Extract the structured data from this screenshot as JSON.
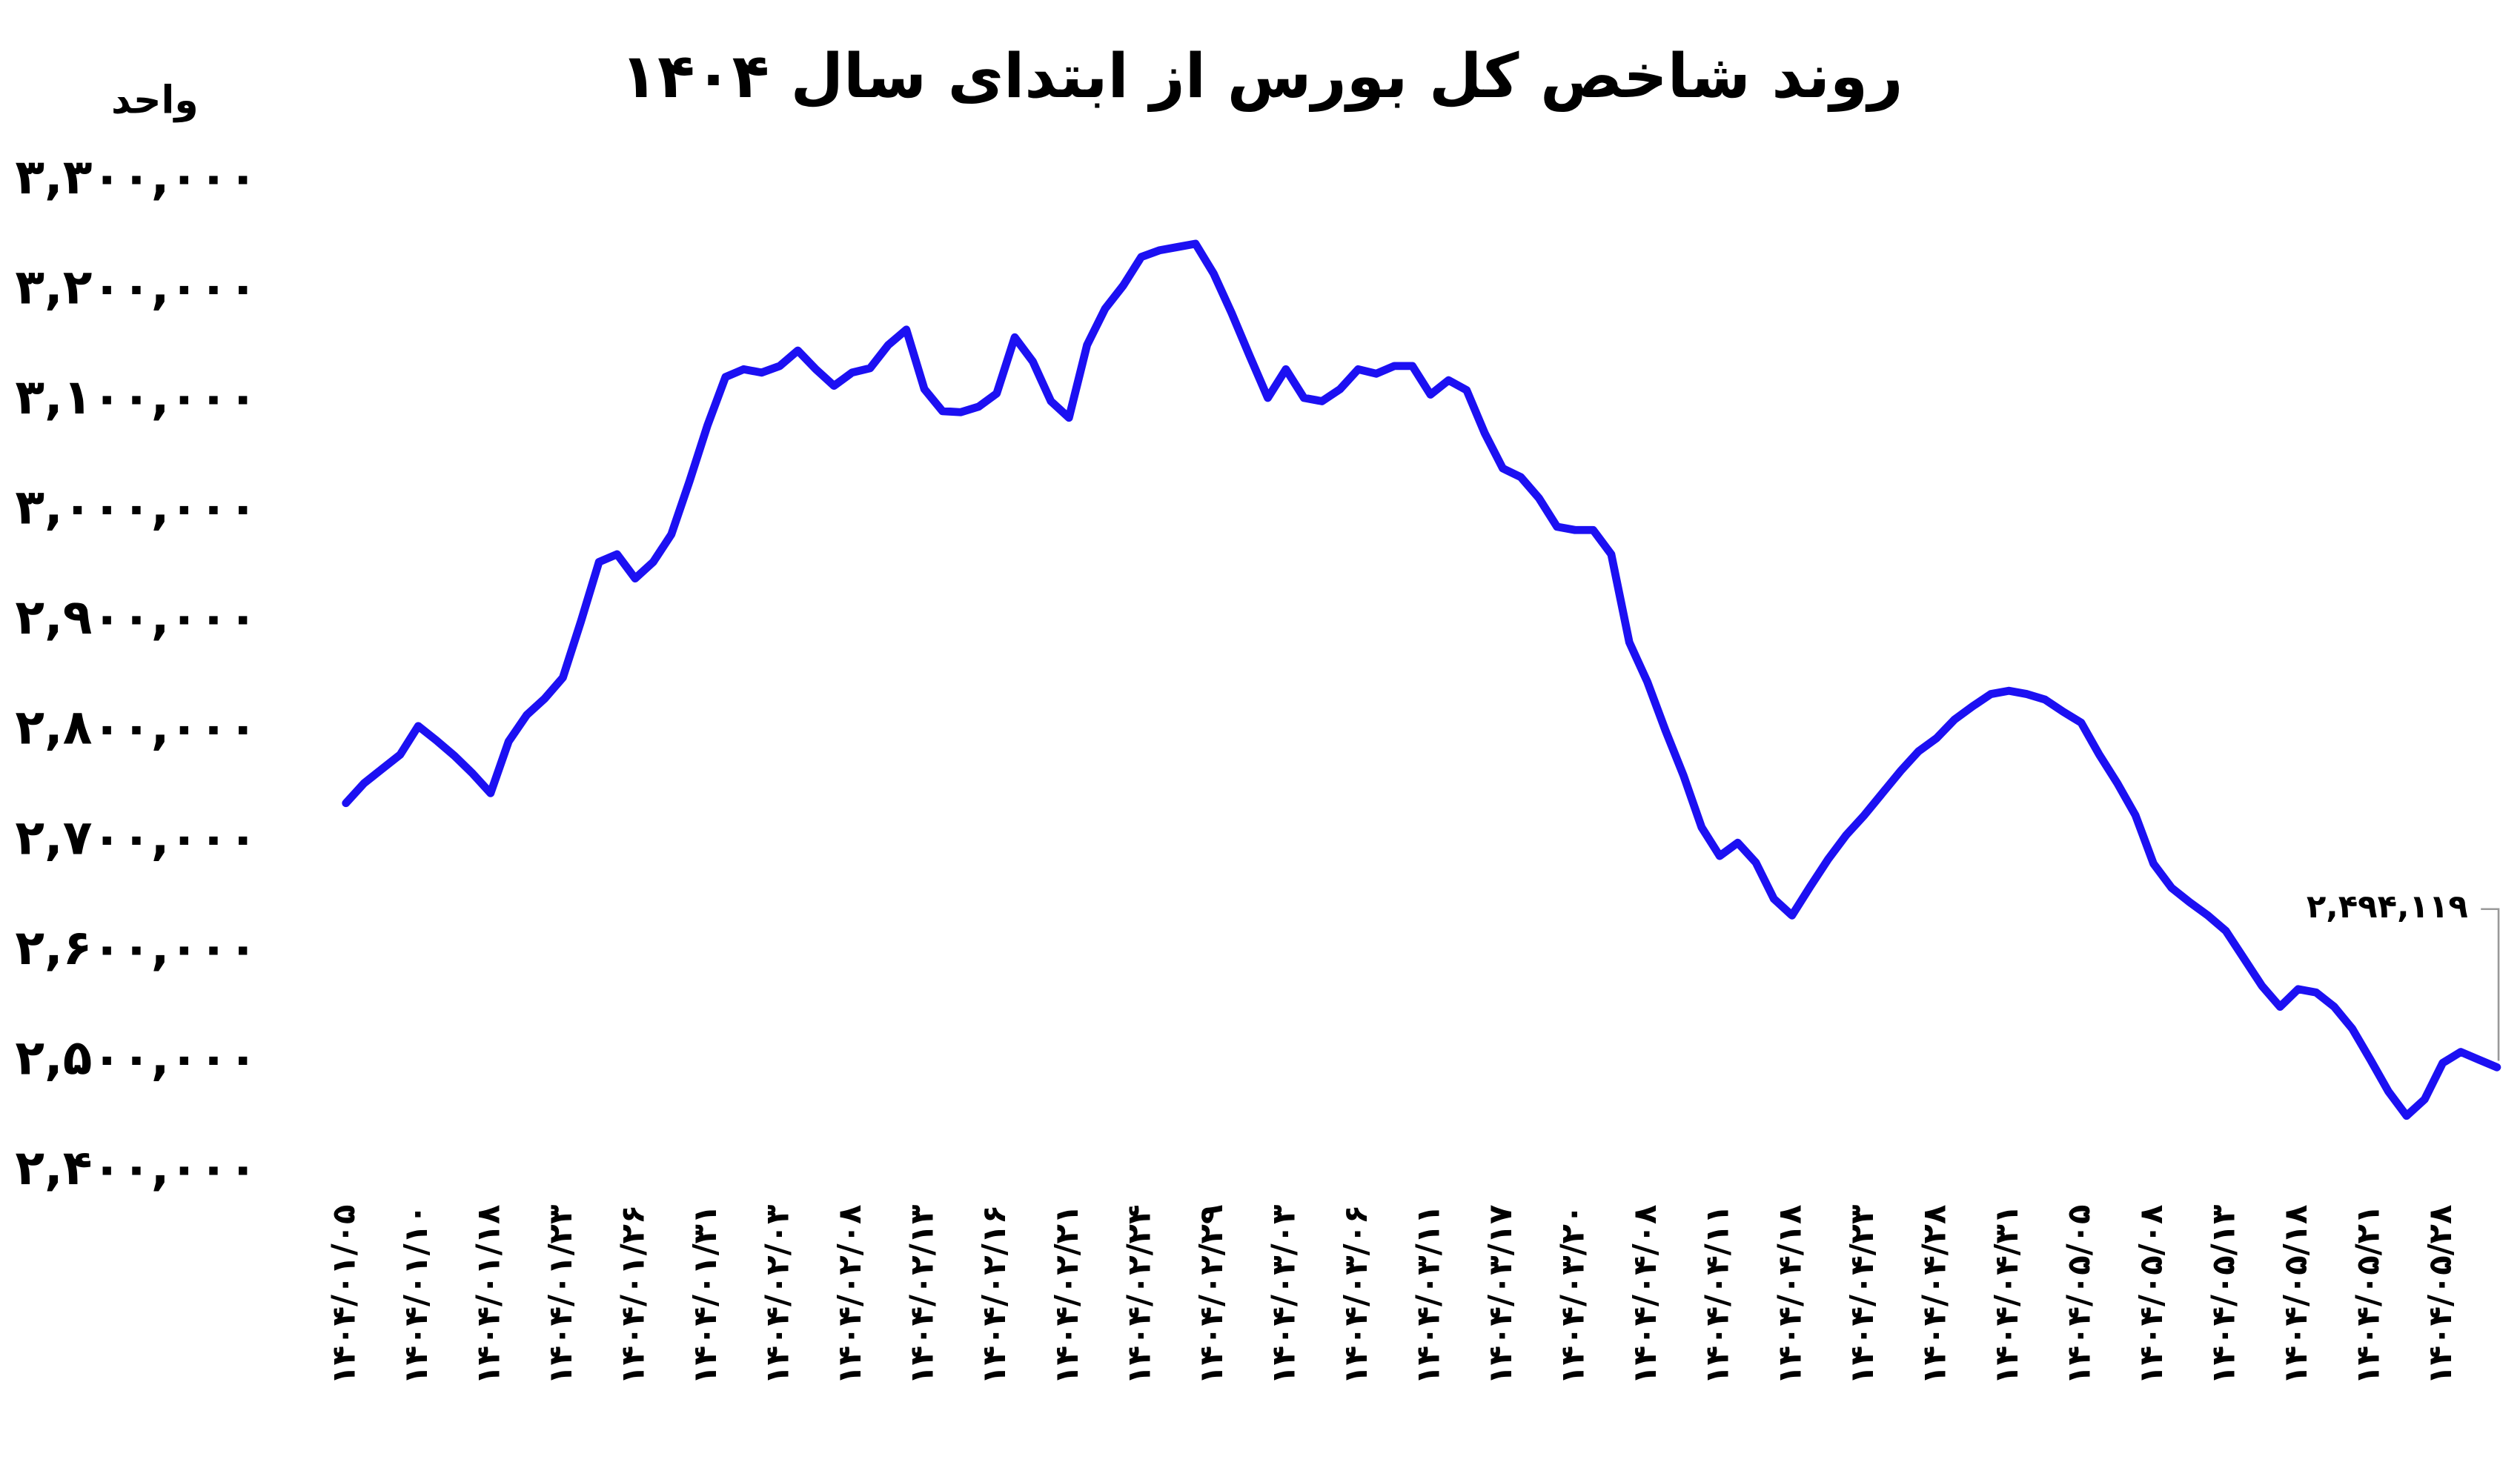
{
  "chart_data": {
    "type": "line",
    "title": "روند شاخص کل بورس از ابتدای سال ۱۴۰۴",
    "y_label": "واحد",
    "categories": [
      "۱۴۰۴/۰۱/۰۵",
      null,
      null,
      null,
      "۱۴۰۴/۰۱/۱۰",
      null,
      null,
      null,
      "۱۴۰۴/۰۱/۱۸",
      null,
      null,
      null,
      "۱۴۰۴/۰۱/۲۳",
      null,
      null,
      null,
      "۱۴۰۴/۰۱/۲۶",
      null,
      null,
      null,
      "۱۴۰۴/۰۱/۳۱",
      null,
      null,
      null,
      "۱۴۰۴/۰۲/۰۳",
      null,
      null,
      null,
      "۱۴۰۴/۰۲/۰۸",
      null,
      null,
      null,
      "۱۴۰۴/۰۲/۱۳",
      null,
      null,
      null,
      "۱۴۰۴/۰۲/۱۶",
      null,
      null,
      null,
      "۱۴۰۴/۰۲/۲۱",
      null,
      null,
      null,
      "۱۴۰۴/۰۲/۲۴",
      null,
      null,
      null,
      "۱۴۰۴/۰۲/۲۹",
      null,
      null,
      null,
      "۱۴۰۴/۰۳/۰۳",
      null,
      null,
      null,
      "۱۴۰۴/۰۳/۰۶",
      null,
      null,
      null,
      "۱۴۰۴/۰۳/۱۱",
      null,
      null,
      null,
      "۱۴۰۴/۰۳/۱۷",
      null,
      null,
      null,
      "۱۴۰۴/۰۳/۲۰",
      null,
      null,
      null,
      "۱۴۰۴/۰۴/۰۸",
      null,
      null,
      null,
      "۱۴۰۴/۰۴/۱۱",
      null,
      null,
      null,
      "۱۴۰۴/۰۴/۱۸",
      null,
      null,
      null,
      "۱۴۰۴/۰۴/۲۳",
      null,
      null,
      null,
      "۱۴۰۴/۰۴/۲۸",
      null,
      null,
      null,
      "۱۴۰۴/۰۴/۳۱",
      null,
      null,
      null,
      "۱۴۰۴/۰۵/۰۵",
      null,
      null,
      null,
      "۱۴۰۴/۰۵/۰۸",
      null,
      null,
      null,
      "۱۴۰۴/۰۵/۱۳",
      null,
      null,
      null,
      "۱۴۰۴/۰۵/۱۸",
      null,
      null,
      null,
      "۱۴۰۴/۰۵/۲۱",
      null,
      null,
      null,
      "۱۴۰۴/۰۵/۲۸",
      null,
      null,
      null
    ],
    "series": [
      {
        "color": "#1c10f2",
        "values": [
          2734000,
          2752000,
          2765000,
          2778000,
          2804000,
          2791000,
          2777000,
          2761000,
          2743000,
          2790000,
          2814000,
          2829000,
          2848000,
          2899000,
          2953000,
          2960000,
          2938000,
          2953000,
          2978000,
          3026000,
          3077000,
          3121000,
          3128000,
          3125000,
          3131000,
          3145000,
          3128000,
          3113000,
          3125000,
          3129000,
          3150000,
          3164000,
          3110000,
          3090000,
          3089000,
          3094000,
          3106000,
          3157000,
          3135000,
          3099000,
          3084000,
          3150000,
          3183000,
          3204000,
          3230000,
          3236000,
          3239000,
          3242000,
          3215000,
          3179000,
          3140000,
          3102000,
          3128000,
          3102000,
          3099000,
          3110000,
          3128000,
          3124000,
          3131000,
          3131000,
          3105000,
          3118000,
          3109000,
          3070000,
          3038000,
          3030000,
          3011000,
          2985000,
          2982000,
          2982000,
          2960000,
          2880000,
          2844000,
          2800000,
          2759000,
          2712000,
          2686000,
          2698000,
          2680000,
          2647000,
          2632000,
          2658000,
          2683000,
          2705000,
          2723000,
          2743000,
          2763000,
          2781000,
          2793000,
          2810000,
          2822000,
          2833000,
          2836000,
          2833000,
          2828000,
          2817000,
          2807000,
          2778000,
          2752000,
          2723000,
          2679000,
          2657000,
          2644000,
          2632000,
          2618000,
          2593000,
          2568000,
          2549000,
          2565000,
          2562000,
          2549000,
          2529000,
          2501000,
          2472000,
          2450000,
          2465000,
          2498000,
          2508000,
          2501000,
          2494119
        ],
        "value_labels": [
          null,
          null,
          null,
          null,
          null,
          null,
          null,
          null,
          null,
          null,
          null,
          null,
          null,
          null,
          null,
          null,
          null,
          null,
          null,
          null,
          null,
          null,
          null,
          null,
          null,
          null,
          null,
          null,
          null,
          null,
          null,
          null,
          null,
          null,
          null,
          null,
          null,
          null,
          null,
          null,
          null,
          null,
          null,
          null,
          null,
          null,
          null,
          null,
          null,
          null,
          null,
          null,
          null,
          null,
          null,
          null,
          null,
          null,
          null,
          null,
          null,
          null,
          null,
          null,
          null,
          null,
          null,
          null,
          null,
          null,
          null,
          null,
          null,
          null,
          null,
          null,
          null,
          null,
          null,
          null,
          null,
          null,
          null,
          null,
          null,
          null,
          null,
          null,
          null,
          null,
          null,
          null,
          null,
          null,
          null,
          null,
          null,
          null,
          null,
          null,
          null,
          null,
          null,
          null,
          null,
          null,
          null,
          null,
          null,
          null,
          null,
          null,
          null,
          null,
          null,
          null,
          null,
          null,
          null,
          "۲,۴۹۴,۱۱۹"
        ]
      }
    ],
    "ylim": [
      2400000,
      3300000
    ],
    "yticks": [
      {
        "value": 2400000,
        "label": "۲,۴۰۰,۰۰۰"
      },
      {
        "value": 2500000,
        "label": "۲,۵۰۰,۰۰۰"
      },
      {
        "value": 2600000,
        "label": "۲,۶۰۰,۰۰۰"
      },
      {
        "value": 2700000,
        "label": "۲,۷۰۰,۰۰۰"
      },
      {
        "value": 2800000,
        "label": "۲,۸۰۰,۰۰۰"
      },
      {
        "value": 2900000,
        "label": "۲,۹۰۰,۰۰۰"
      },
      {
        "value": 3000000,
        "label": "۳,۰۰۰,۰۰۰"
      },
      {
        "value": 3100000,
        "label": "۳,۱۰۰,۰۰۰"
      },
      {
        "value": 3200000,
        "label": "۳,۲۰۰,۰۰۰"
      },
      {
        "value": 3300000,
        "label": "۳,۳۰۰,۰۰۰"
      }
    ],
    "grid": false
  }
}
